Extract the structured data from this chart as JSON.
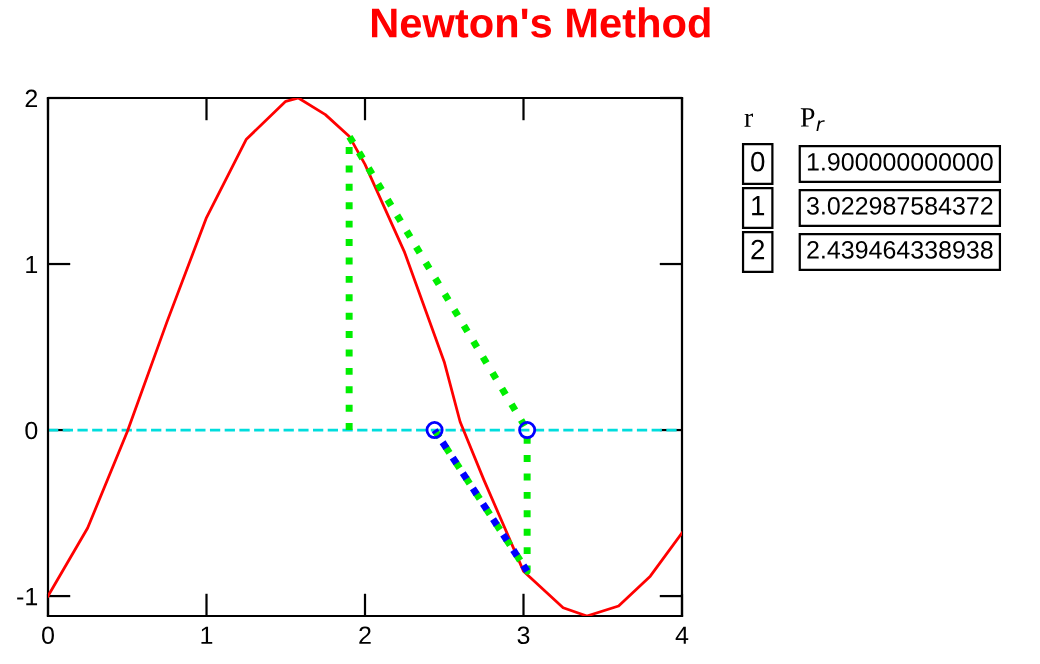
{
  "chart_data": {
    "type": "line",
    "title": "Newton's Method",
    "xlim": [
      0,
      4
    ],
    "ylim": [
      -1.12,
      2
    ],
    "xticks": [
      0,
      1,
      2,
      3,
      4
    ],
    "yticks": [
      -1,
      0,
      1,
      2
    ],
    "grid": false,
    "legend": false,
    "series": [
      {
        "color": "#ff0000",
        "line_style": "solid",
        "marker": "none",
        "x": [
          0,
          0.25,
          0.5,
          0.75,
          1.0,
          1.25,
          1.5,
          1.58,
          1.75,
          1.9,
          2.0,
          2.25,
          2.5,
          2.6,
          2.75,
          3.0,
          3.25,
          3.4,
          3.6,
          3.8,
          4.0
        ],
        "values": [
          -1,
          -0.59,
          -0.01,
          0.65,
          1.28,
          1.75,
          1.98,
          2,
          1.9,
          1.77,
          1.6,
          1.07,
          0.41,
          0.05,
          -0.3,
          -0.85,
          -1.07,
          -1.12,
          -1.06,
          -0.88,
          -0.62
        ]
      },
      {
        "color": "#00ee00",
        "line_style": "dotted",
        "marker": "none",
        "x": [
          1.9,
          1.9,
          3.023,
          3.023,
          2.439
        ],
        "values": [
          0,
          1.77,
          0,
          -0.85,
          0
        ]
      },
      {
        "color": "#0000ff",
        "line_style": "dotted",
        "marker": "none",
        "x": [
          3.023,
          2.439
        ],
        "values": [
          -0.85,
          0
        ]
      },
      {
        "type": "scatter",
        "color": "#0000ff",
        "marker": "circle",
        "x": [
          3.023,
          2.439
        ],
        "values": [
          0,
          0
        ]
      }
    ],
    "ref_lines": [
      {
        "axis": "y",
        "value": 0,
        "color": "#00dddd",
        "line_style": "dashed"
      }
    ],
    "annotations": [
      "r",
      "P$_{r}$",
      "0",
      "1",
      "2",
      "1.900000000000",
      "3.022987584372",
      "2.439464338938"
    ]
  }
}
